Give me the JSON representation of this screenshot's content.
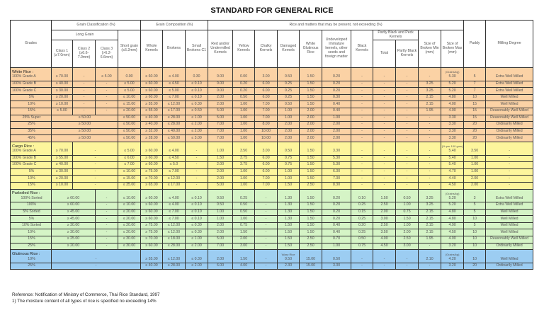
{
  "title": "STANDARD FOR GENERAL RICE",
  "header": {
    "grades": "Grades",
    "grain_classification": "Grain Classification (%)",
    "grain_composition": "Grain Composition (%)",
    "matters": "Rice and matters that may be present, not exceeding (%)",
    "paddy": "Paddy",
    "milling": "Milling Degree",
    "long_grain": "Long Grain",
    "short_grain": "Short grain (≤6.2mm)",
    "whole": "Whole Kernels",
    "brokens": "Brokens",
    "small_brokens": "Small Brokens C1",
    "red": "Red and/or Undermilled Kernels",
    "yellow": "Yellow Kernels",
    "chalky": "Chalky Kernels",
    "damaged": "Damaged Kernels",
    "white_glutinous": "White Glutinous Rice",
    "undeveloped": "Undeveloped Immature kernels, other seeds and foreign matter",
    "black": "Black Kernels",
    "partly_black_peck": "Partly Black and Peck Kernels",
    "size_min": "Size of Broken Min (mm)",
    "size_max": "Size of Broken Max (mm)",
    "class1": "Class 1 (≥7.0mm)",
    "class2": "Class 2 (≥6.6-7.0mm)",
    "class3": "Class 3 (>6.2-6.6mm)",
    "total": "Total",
    "partly_black": "Partly Black Kernels"
  },
  "colors": {
    "white": "#fbd2a5",
    "cargo": "#fdf59c",
    "parboiled": "#d5f4c6",
    "glutinous": "#9ccdf2"
  },
  "sections": [
    {
      "key": "white",
      "title": "White Rice :",
      "paddy_note": "(Grains/kg)",
      "rows": [
        {
          "grade": "100% Grade A",
          "cells": [
            "≥ 70.00",
            "-",
            "≤ 5.00",
            "0.00",
            "≥ 60.00",
            "≤ 4.00",
            "0.30",
            "0.00",
            "0.00",
            "3.00",
            "0.50",
            "1.50",
            "0.20",
            "-",
            "-",
            "-",
            "-",
            "5.30",
            "5",
            "Extra Well Milled"
          ]
        },
        {
          "grade": "100% Grade B",
          "cells": [
            "≥ 40.00",
            "-",
            "-",
            "≤ 5.00",
            "≥ 60.00",
            "≤ 4.50",
            "≤ 0.10",
            "0.00",
            "0.20",
            "6.00",
            "0.25",
            "1.50",
            "0.20",
            "-",
            "-",
            "-",
            "3.25",
            "5.20",
            "7",
            "Extra Well Milled"
          ]
        },
        {
          "grade": "100% Grade C",
          "cells": [
            "≥ 30.00",
            "-",
            "-",
            "≤ 5.00",
            "≥ 60.00",
            "≤ 5.00",
            "≤ 0.10",
            "0.00",
            "0.20",
            "6.00",
            "0.25",
            "1.50",
            "0.20",
            "-",
            "-",
            "-",
            "3.25",
            "5.20",
            "7",
            "Extra Well Milled"
          ]
        },
        {
          "grade": "5%",
          "cells": [
            "≥ 20.00",
            "-",
            "-",
            "≤ 10.00",
            "≥ 60.00",
            "≤ 7.00",
            "≤ 0.10",
            "2.00",
            "0.50",
            "6.00",
            "0.25",
            "1.50",
            "0.30",
            "-",
            "-",
            "-",
            "2.15",
            "4.80",
            "10",
            "Well Milled"
          ]
        },
        {
          "grade": "10%",
          "cells": [
            "≥ 10.00",
            "-",
            "-",
            "≤ 15.00",
            "≥ 55.00",
            "≤ 12.00",
            "≤ 0.30",
            "2.00",
            "1.00",
            "7.00",
            "0.50",
            "1.50",
            "0.40",
            "-",
            "-",
            "-",
            "2.15",
            "4.00",
            "15",
            "Well Milled"
          ]
        },
        {
          "grade": "15%",
          "cells": [
            "≥ 5.00",
            "-",
            "-",
            "≤ 20.00",
            "≥ 55.00",
            "≤ 17.00",
            "≤ 0.50",
            "5.00",
            "1.00",
            "7.00",
            "1.00",
            "2.00",
            "0.40",
            "-",
            "-",
            "-",
            "1.95",
            "4.00",
            "15",
            "Reasonably Well Milled"
          ]
        },
        {
          "grade": "25% Super",
          "cells": [
            {
              "v": "≥ 50.00",
              "span": 3
            },
            "≤ 50.00",
            "≥ 40.00",
            "≤ 28.00",
            "≤ 1.00",
            "5.00",
            "1.00",
            "7.00",
            "1.00",
            "2.00",
            "1.00",
            "-",
            "-",
            "-",
            "-",
            "3.30",
            "15",
            "Reasonably Well Milled"
          ]
        },
        {
          "grade": "25%",
          "cells": [
            {
              "v": "≥ 50.00",
              "span": 3
            },
            "≤ 50.00",
            "≥ 40.00",
            "≤ 28.00",
            "≤ 2.00",
            "7.00",
            "1.00",
            "8.00",
            "2.00",
            "2.00",
            "2.00",
            "-",
            "-",
            "-",
            "-",
            "3.30",
            "20",
            "Ordinarily Milled"
          ]
        },
        {
          "grade": "35%",
          "cells": [
            {
              "v": "≥ 50.00",
              "span": 3
            },
            "≤ 50.00",
            "≥ 32.00",
            "≤ 40.00",
            "≤ 2.00",
            "7.00",
            "1.00",
            "10.00",
            "2.00",
            "2.00",
            "2.00",
            "-",
            "-",
            "-",
            "-",
            "3.30",
            "20",
            "Ordinarily Milled"
          ]
        },
        {
          "grade": "45%",
          "cells": [
            {
              "v": "≥ 50.00",
              "span": 3
            },
            "≤ 50.00",
            "≥ 28.00",
            "≤ 50.00",
            "≤ 3.00",
            "7.00",
            "1.00",
            "10.00",
            "2.00",
            "2.00",
            "2.00",
            "-",
            "-",
            "-",
            "-",
            "3.30",
            "20",
            "Ordinarily Milled"
          ]
        }
      ]
    },
    {
      "key": "cargo",
      "title": "Cargo Rice :",
      "paddy_note": "(% per 100 gms)",
      "rows": [
        {
          "grade": "100% Grade A",
          "cells": [
            "≥ 70.00",
            {
              "v": "-",
              "span": 2
            },
            "≤ 5.00",
            "≥ 60.00",
            "≤ 4.00",
            "-",
            "1.00",
            "3.50",
            "3.00",
            "0.50",
            "1.50",
            "3.30",
            "-",
            "-",
            "-",
            "-",
            "5.40",
            "3.50",
            "-"
          ]
        },
        {
          "grade": "100% Grade B",
          "cells": [
            "≥ 55.00",
            {
              "v": "-",
              "span": 2
            },
            "≤ 6.00",
            "≥ 60.00",
            "≤ 4.50",
            "-",
            "1.50",
            "3.75",
            "6.00",
            "0.75",
            "1.50",
            "5.30",
            "-",
            "-",
            "-",
            "-",
            "5.40",
            "1.00",
            "-"
          ]
        },
        {
          "grade": "100% Grade C",
          "cells": [
            "≥ 40.00",
            {
              "v": "-",
              "span": 2
            },
            "≤ 7.00",
            "≥ 60.00",
            "≤ 5.0",
            "-",
            "2.00",
            "3.75",
            "6.00",
            "0.75",
            "1.50",
            "5.30",
            "-",
            "-",
            "-",
            "-",
            "5.40",
            "1.00",
            "-"
          ]
        },
        {
          "grade": "5%",
          "cells": [
            "≥ 30.00",
            {
              "v": "-",
              "span": 2
            },
            "≤ 10.00",
            "≥ 75.00",
            "≤ 7.00",
            "-",
            "2.00",
            "1.00",
            "6.00",
            "1.00",
            "1.50",
            "6.30",
            "-",
            "-",
            "-",
            "-",
            "4.70",
            "1.00",
            "-"
          ]
        },
        {
          "grade": "10%",
          "cells": [
            "≥ 20.00",
            {
              "v": "-",
              "span": 2
            },
            "≤ 15.00",
            "≥ 70.00",
            "≤ 12.00",
            "-",
            "2.00",
            "1.00",
            "7.00",
            "1.00",
            "1.50",
            "7.30",
            "-",
            "-",
            "-",
            "-",
            "4.40",
            "2.00",
            "-"
          ]
        },
        {
          "grade": "15%",
          "cells": [
            "≥ 10.00",
            {
              "v": "-",
              "span": 2
            },
            "≤ 35.00",
            "≥ 65.00",
            "≤ 17.00",
            "-",
            "5.00",
            "1.00",
            "7.00",
            "1.50",
            "2.50",
            "8.30",
            "-",
            "-",
            "-",
            "-",
            "4.50",
            "2.00",
            "-"
          ]
        }
      ]
    },
    {
      "key": "parboiled",
      "title": "Parboiled Rice :",
      "paddy_note": "(Grains/kg)",
      "rows": [
        {
          "grade": "100% Sorted",
          "cells": [
            {
              "v": "≥ 60.00",
              "span": 2
            },
            "-",
            "≤ 10.00",
            "≥ 60.00",
            "≤ 4.00",
            "≤ 0.10",
            "0.50",
            "0.25",
            "-",
            "1.30",
            "1.50",
            "0.20",
            "0.10",
            "1.50",
            "0.50",
            "3.25",
            "5.20",
            "3",
            "Extra Well Milled"
          ]
        },
        {
          "grade": "100%",
          "cells": [
            {
              "v": "≥ 60.00",
              "span": 2
            },
            "-",
            "≤ 10.00",
            "≥ 60.00",
            "≤ 4.00",
            "≤ 0.10",
            "0.50",
            "0.50",
            "-",
            "1.30",
            "1.50",
            "0.20",
            "0.25",
            "2.50",
            "1.00",
            "3.25",
            "5.20",
            "5",
            "Extra Well Milled"
          ]
        },
        {
          "grade": "5% Sorted",
          "cells": [
            {
              "v": "≥ 45.00",
              "span": 2
            },
            "-",
            "≤ 20.00",
            "≥ 60.00",
            "≤ 7.00",
            "≤ 0.10",
            "1.00",
            "0.50",
            "-",
            "1.30",
            "1.50",
            "0.20",
            "0.15",
            "2.00",
            "0.75",
            "2.15",
            "4.80",
            "5",
            "Well Milled"
          ]
        },
        {
          "grade": "5%",
          "cells": [
            {
              "v": "≥ 45.00",
              "span": 2
            },
            "-",
            "≤ 20.00",
            "≥ 60.00",
            "≤ 7.00",
            "≤ 0.10",
            "1.00",
            "1.00",
            "-",
            "1.30",
            "1.50",
            "0.20",
            "0.25",
            "3.00",
            "1.50",
            "2.15",
            "4.80",
            "10",
            "Well Milled"
          ]
        },
        {
          "grade": "10% Sorted",
          "cells": [
            {
              "v": "≥ 30.00",
              "span": 2
            },
            "-",
            "≤ 20.00",
            "≥ 75.00",
            "≤ 12.00",
            "≤ 0.30",
            "2.00",
            "0.75",
            "-",
            "1.50",
            "1.50",
            "0.40",
            "0.20",
            "2.50",
            "1.00",
            "2.15",
            "4.90",
            "5",
            "Well Milled"
          ]
        },
        {
          "grade": "10%",
          "cells": [
            {
              "v": "≥ 30.00",
              "span": 2
            },
            "-",
            "≤ 20.00",
            "≥ 75.00",
            "≤ 12.00",
            "≤ 0.30",
            "2.00",
            "1.50",
            "-",
            "1.50",
            "1.50",
            "0.40",
            "0.25",
            "3.50",
            "2.00",
            "2.15",
            "4.50",
            "10",
            "Well Milled"
          ]
        },
        {
          "grade": "15%",
          "cells": [
            {
              "v": "≥ 25.00",
              "span": 2
            },
            "-",
            "≤ 30.00",
            "≥ 70.00",
            "≤ 18.00",
            "≤ 1.00",
            "5.00",
            "2.00",
            "-",
            "1.50",
            "2.50",
            "0.70",
            "0.50",
            "4.00",
            "2.50",
            "1.95",
            "4.00",
            "10",
            "Reasonably Well Milled"
          ]
        },
        {
          "grade": "25%",
          "cells": [
            {
              "v": "≥ 20.00",
              "span": 2
            },
            "-",
            "≤ 30.00",
            "≥ 60.00",
            "≤ 28.00",
            "≤ 2.00",
            "7.00",
            "3.00",
            "-",
            "1.50",
            "2.50",
            "1.00",
            "0.75",
            "4.50",
            "3.00",
            "-",
            "3.20",
            "10",
            "Ordinarily Milled"
          ]
        }
      ]
    },
    {
      "key": "glutinous",
      "title": "Glutinous Rice :",
      "paddy_note": "(Grains/kg)",
      "white_note": "Waxy Rice",
      "rows": [
        {
          "grade": "10%",
          "cells": [
            {
              "v": "-",
              "span": 4
            },
            "≥ 55.00",
            "≤ 12.00",
            "≤ 0.30",
            "2.00",
            "1.50",
            "-",
            "0.50",
            "15.00",
            "0.50",
            "-",
            "-",
            "-",
            "2.10",
            "4.20",
            "10",
            "Well Milled"
          ]
        },
        {
          "grade": "25%",
          "cells": [
            {
              "v": "-",
              "span": 4
            },
            "≥ 40.00",
            "≤ 28.00",
            "≤ 2.00",
            "6.00",
            "4.00",
            "-",
            "2.30",
            "15.00",
            "3.30",
            "-",
            "-",
            "-",
            "-",
            "3.20",
            "20",
            "Ordinarily Milled"
          ]
        }
      ]
    }
  ],
  "footer": {
    "reference": "Reference: Notification of Ministry of Commerce, Thai Rice Standard, 1997",
    "note": "1) The moisture content of all types of rice is specified no exceeding 14%"
  }
}
